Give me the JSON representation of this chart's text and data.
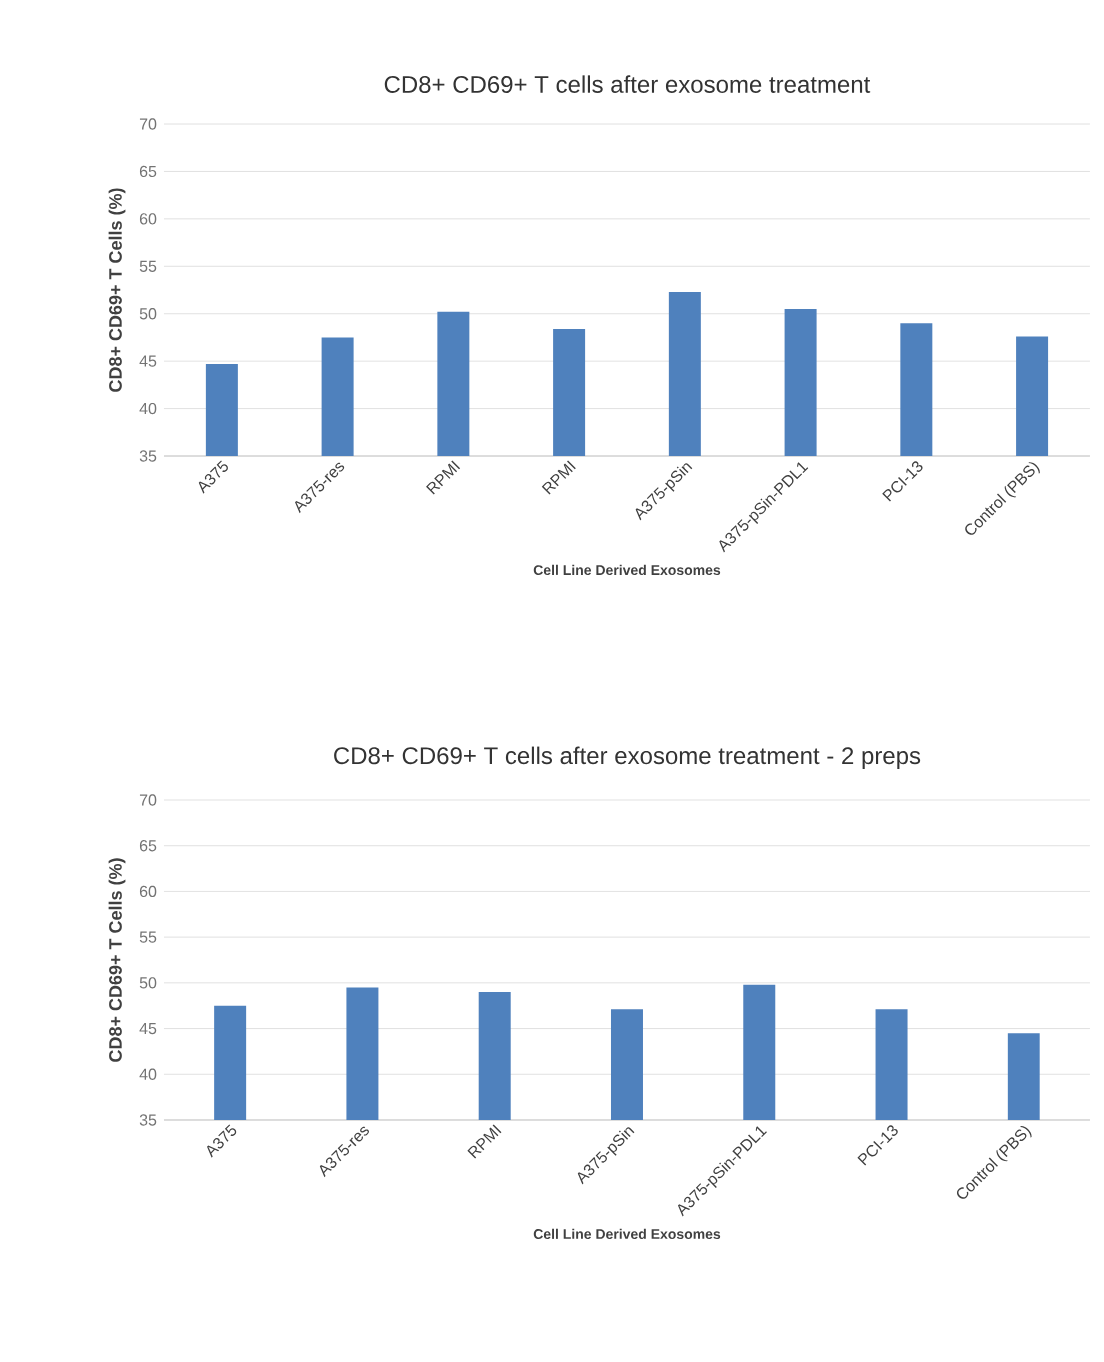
{
  "chart_data": [
    {
      "type": "bar",
      "title": "CD8+ CD69+ T cells after exosome treatment",
      "xlabel": "Cell Line Derived Exosomes",
      "ylabel": "CD8+ CD69+ T Cells (%)",
      "categories": [
        "A375",
        "A375-res",
        "RPMI",
        "RPMI",
        "A375-pSin",
        "A375-pSin-PDL1",
        "PCI-13",
        "Control (PBS)"
      ],
      "values": [
        44.7,
        47.5,
        50.2,
        48.4,
        52.3,
        50.5,
        49.0,
        47.6
      ],
      "color": "#4f81bd",
      "ylim": [
        35,
        70
      ],
      "yticks": [
        35,
        40,
        45,
        50,
        55,
        60,
        65,
        70
      ],
      "grid": "y"
    },
    {
      "type": "bar",
      "title": "CD8+ CD69+ T cells after exosome treatment - 2 preps",
      "xlabel": "Cell Line Derived Exosomes",
      "ylabel": "CD8+ CD69+ T Cells (%)",
      "categories": [
        "A375",
        "A375-res",
        "RPMI",
        "A375-pSin",
        "A375-pSin-PDL1",
        "PCI-13",
        "Control (PBS)"
      ],
      "values": [
        47.5,
        49.5,
        49.0,
        47.1,
        49.8,
        47.1,
        44.5
      ],
      "color": "#4f81bd",
      "ylim": [
        35,
        70
      ],
      "yticks": [
        35,
        40,
        45,
        50,
        55,
        60,
        65,
        70
      ],
      "grid": "y"
    }
  ]
}
